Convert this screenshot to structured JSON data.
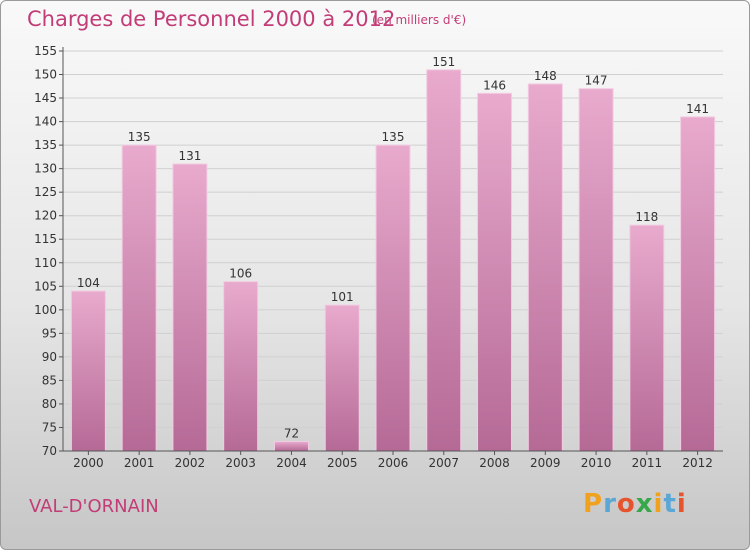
{
  "header": {
    "title": "Charges de Personnel 2000 à 2012",
    "unit": "(en milliers d'€)"
  },
  "footer": {
    "place": "VAL-D'ORNAIN",
    "logo": [
      "P",
      "r",
      "o",
      "x",
      "i",
      "t",
      "i"
    ]
  },
  "colors": {
    "bar_top": "#e8aacd",
    "bar_bottom": "#b56a96",
    "bar_edge": "#f3cce2",
    "text_accent": "#c23d77",
    "logo": [
      "#f0a21f",
      "#5aa7d6",
      "#e6542d",
      "#36a84a",
      "#f0a21f",
      "#5aa7d6",
      "#e6542d"
    ]
  },
  "chart_data": {
    "type": "bar",
    "categories": [
      "2000",
      "2001",
      "2002",
      "2003",
      "2004",
      "2005",
      "2006",
      "2007",
      "2008",
      "2009",
      "2010",
      "2011",
      "2012"
    ],
    "values": [
      104,
      135,
      131,
      106,
      72,
      101,
      135,
      151,
      146,
      148,
      147,
      118,
      141
    ],
    "ylim": [
      70,
      155
    ],
    "yticks": [
      70,
      75,
      80,
      85,
      90,
      95,
      100,
      105,
      110,
      115,
      120,
      125,
      130,
      135,
      140,
      145,
      150,
      155
    ],
    "grid": true
  }
}
